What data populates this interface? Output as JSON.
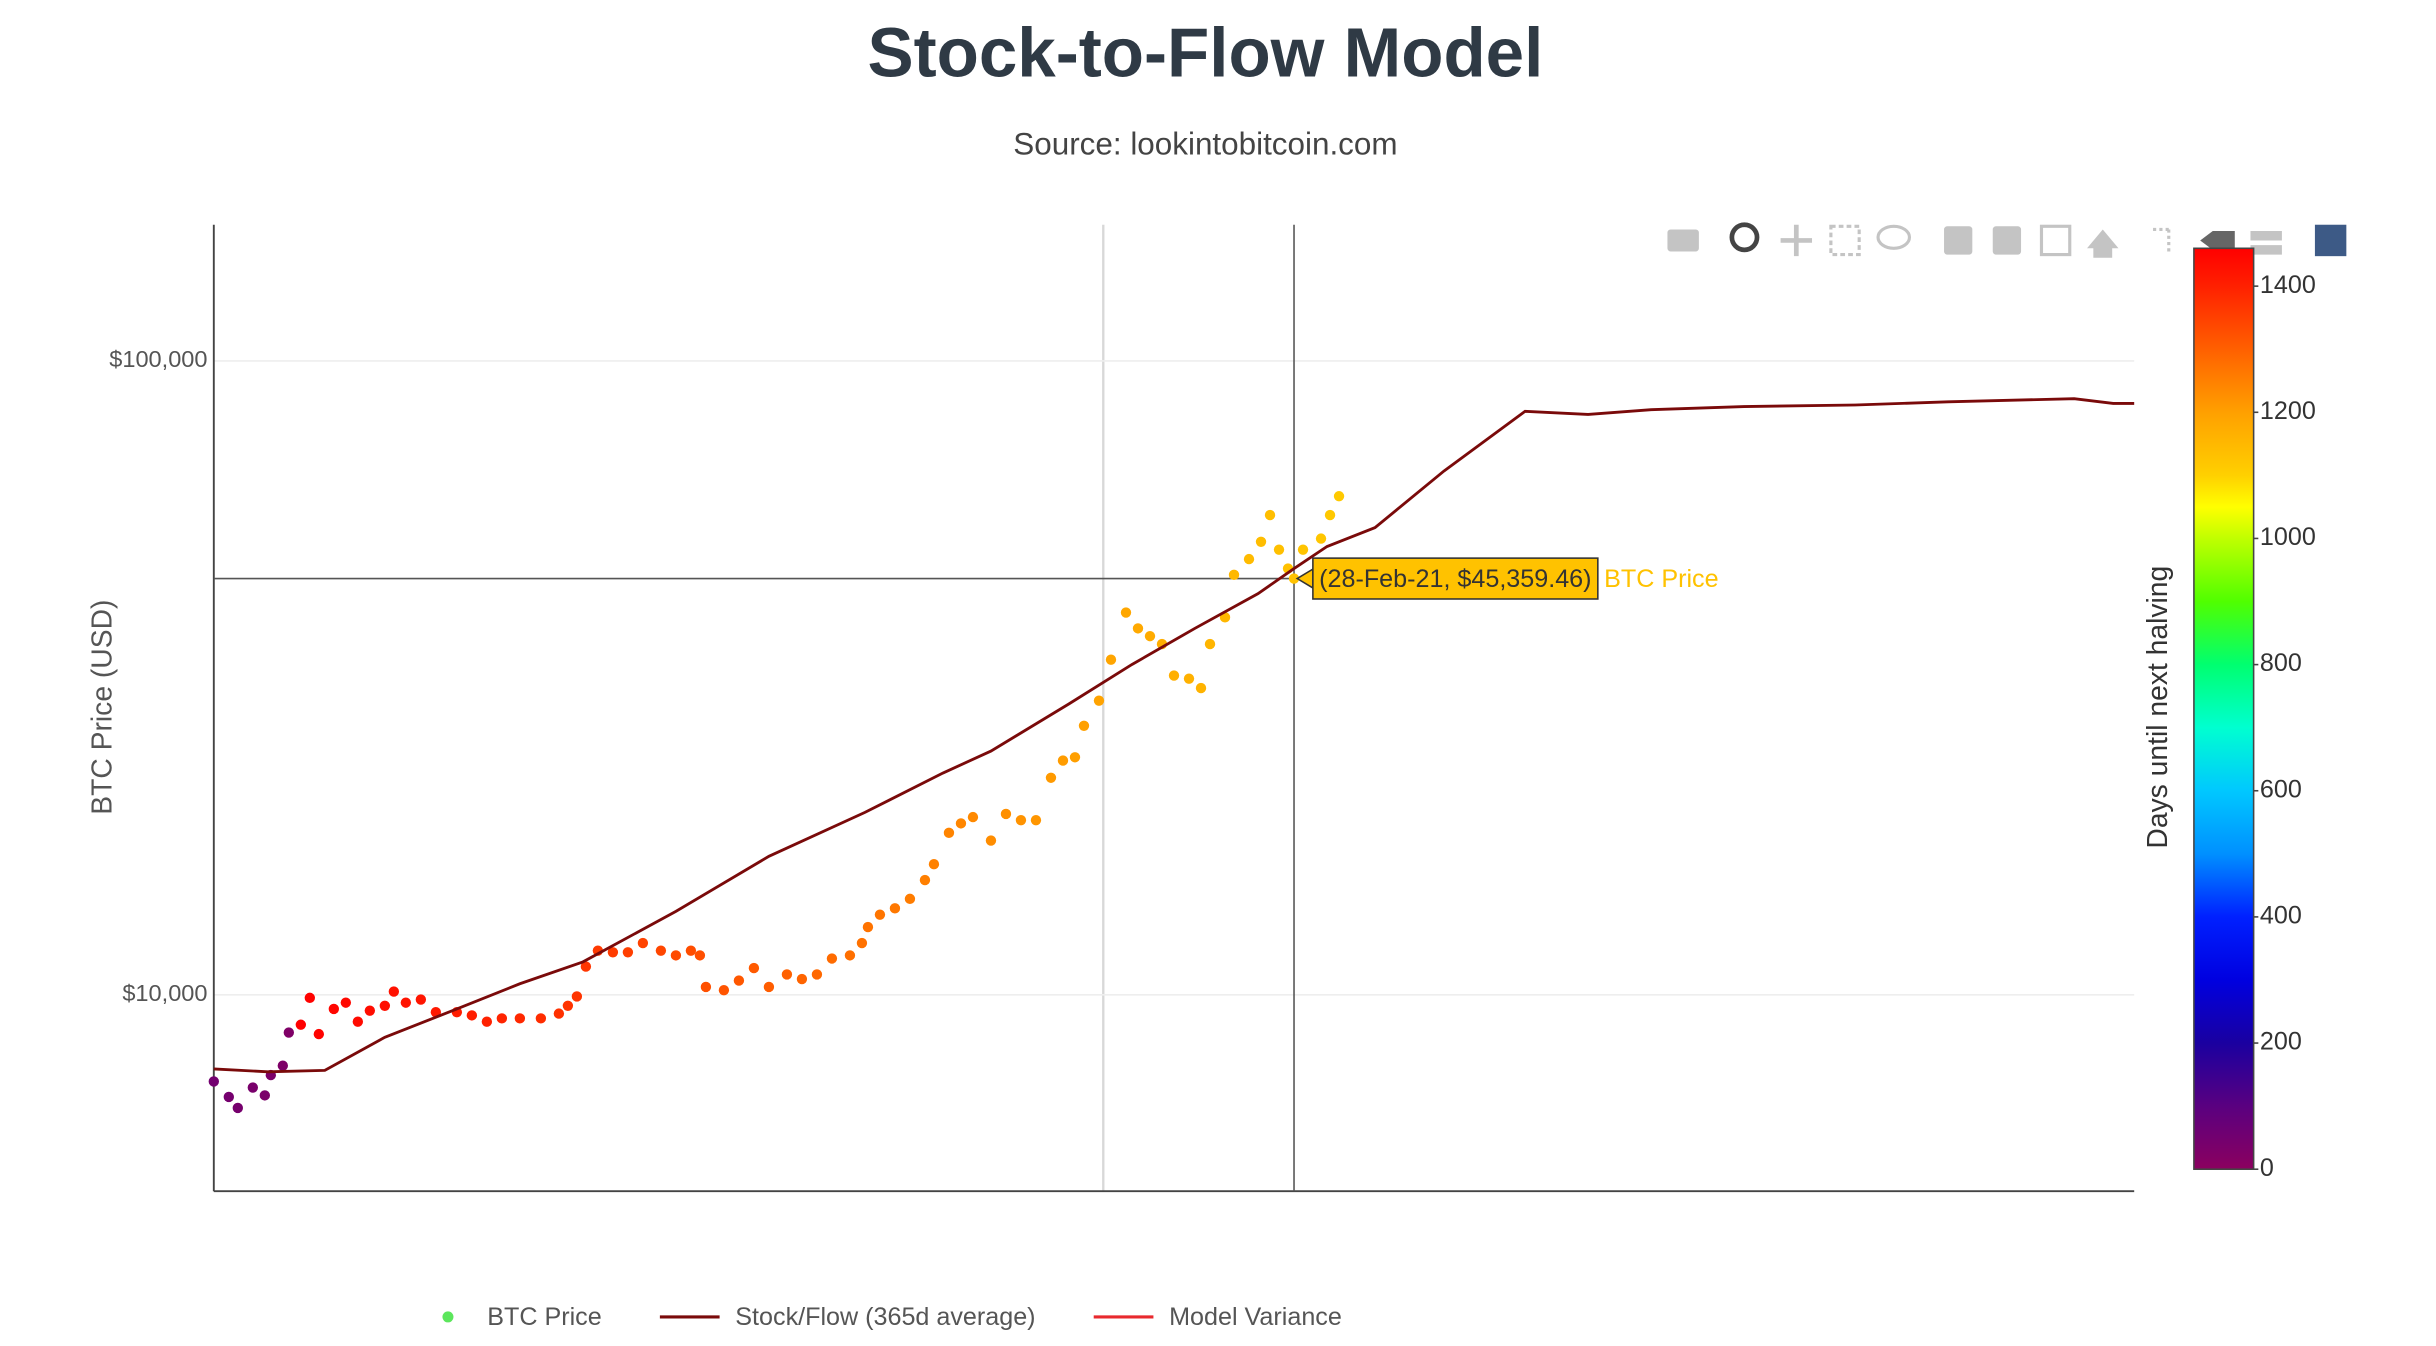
{
  "chart_data": {
    "type": "scatter",
    "title": "Stock-to-Flow Model",
    "subtitle": "Source: lookintobitcoin.com",
    "y_label": "BTC Price (USD)",
    "log_y": true,
    "grid": true,
    "xlim": [
      0,
      640
    ],
    "ylim": [
      4900,
      164000
    ],
    "yticks": [
      {
        "value": 10000,
        "label": "$10,000"
      },
      {
        "value": 100000,
        "label": "$100,000"
      }
    ],
    "series": [
      {
        "name": "BTC Price",
        "type": "scatter",
        "color": "#5ce65c",
        "x": [
          0,
          5,
          8,
          13,
          17,
          19,
          23,
          25,
          29,
          32,
          35,
          40,
          44,
          48,
          52,
          57,
          60,
          64,
          69,
          74,
          81,
          86,
          91,
          96,
          102,
          109,
          115,
          118,
          121,
          124,
          128,
          133,
          138,
          143,
          149,
          154,
          159,
          162,
          164,
          170,
          175,
          180,
          185,
          191,
          196,
          201,
          206,
          212,
          216,
          218,
          222,
          227,
          232,
          237,
          240,
          245,
          249,
          253,
          259,
          264,
          269,
          274,
          279,
          283,
          287,
          290,
          295,
          299,
          304,
          308,
          312,
          316,
          320,
          325,
          329,
          332,
          337,
          340,
          345,
          349,
          352,
          355,
          358,
          360,
          363,
          369,
          372,
          375
        ],
        "values": [
          7300,
          6900,
          6630,
          7140,
          6940,
          7470,
          7730,
          8720,
          8970,
          9890,
          8670,
          9500,
          9720,
          9070,
          9440,
          9610,
          10120,
          9720,
          9830,
          9390,
          9390,
          9280,
          9070,
          9180,
          9180,
          9180,
          9340,
          9610,
          9940,
          11080,
          11740,
          11670,
          11670,
          12070,
          11740,
          11540,
          11740,
          11540,
          10290,
          10170,
          10530,
          11020,
          10290,
          10770,
          10590,
          10770,
          11410,
          11540,
          12070,
          12790,
          13380,
          13690,
          14170,
          15170,
          16070,
          18010,
          18640,
          19070,
          17510,
          19290,
          18860,
          18860,
          22000,
          23420,
          23700,
          26570,
          29110,
          33780,
          40090,
          37850,
          36800,
          35750,
          31890,
          31530,
          30470,
          35750,
          39400,
          45980,
          48680,
          51840,
          57120,
          50380,
          47040,
          45359.46,
          50380,
          52440,
          57120,
          61170
        ],
        "halving_days": [
          50,
          45,
          42,
          37,
          33,
          31,
          27,
          25,
          1460,
          1457,
          1454,
          1449,
          1445,
          1441,
          1437,
          1432,
          1429,
          1425,
          1420,
          1415,
          1408,
          1403,
          1398,
          1393,
          1387,
          1380,
          1374,
          1371,
          1368,
          1365,
          1361,
          1356,
          1351,
          1346,
          1340,
          1335,
          1330,
          1327,
          1325,
          1319,
          1314,
          1309,
          1304,
          1298,
          1293,
          1288,
          1283,
          1277,
          1273,
          1271,
          1267,
          1262,
          1257,
          1252,
          1249,
          1244,
          1240,
          1236,
          1230,
          1225,
          1220,
          1215,
          1210,
          1206,
          1202,
          1199,
          1194,
          1190,
          1185,
          1181,
          1177,
          1173,
          1169,
          1164,
          1160,
          1157,
          1152,
          1149,
          1144,
          1140,
          1137,
          1134,
          1131,
          1129,
          1126,
          1120,
          1117,
          1114
        ]
      },
      {
        "name": "Stock/Flow (365d average)",
        "type": "line",
        "color": "#7a0a0a",
        "x": [
          0,
          18,
          37,
          57,
          81,
          102,
          123,
          154,
          185,
          217,
          243,
          259,
          285,
          306,
          327,
          348,
          360,
          371,
          387,
          410,
          437,
          458,
          479,
          510,
          547,
          578,
          620,
          633,
          640
        ],
        "values": [
          7640,
          7560,
          7600,
          8570,
          9500,
          10410,
          11270,
          13540,
          16540,
          19400,
          22380,
          24240,
          28770,
          33200,
          37860,
          42940,
          47040,
          50960,
          54580,
          67050,
          83280,
          82330,
          83770,
          84720,
          85210,
          86200,
          87180,
          85700,
          85700
        ]
      },
      {
        "name": "Model Variance",
        "type": "line",
        "color": "#e8292e",
        "x": [],
        "values": []
      }
    ],
    "colorbar": {
      "title": "Days until next halving",
      "lim": [
        0,
        1460
      ],
      "ticks": [
        0,
        200,
        400,
        600,
        800,
        1000,
        1200,
        1400
      ],
      "colorscale": [
        [
          0,
          "#8b005f"
        ],
        [
          100,
          "#5a0080"
        ],
        [
          200,
          "#1a00a0"
        ],
        [
          300,
          "#0000e0"
        ],
        [
          400,
          "#0020ff"
        ],
        [
          500,
          "#0090ff"
        ],
        [
          600,
          "#00c8ff"
        ],
        [
          700,
          "#00ffd0"
        ],
        [
          800,
          "#00ff70"
        ],
        [
          900,
          "#50ff00"
        ],
        [
          1000,
          "#c0ff00"
        ],
        [
          1050,
          "#ffff00"
        ],
        [
          1100,
          "#ffd000"
        ],
        [
          1200,
          "#ffa000"
        ],
        [
          1300,
          "#ff6000"
        ],
        [
          1400,
          "#ff2000"
        ],
        [
          1460,
          "#ff0000"
        ]
      ]
    },
    "hover": {
      "x": 360,
      "y": 45359.46,
      "label": "(28-Feb-21, $45,359.46)",
      "series": "BTC Price"
    }
  }
}
